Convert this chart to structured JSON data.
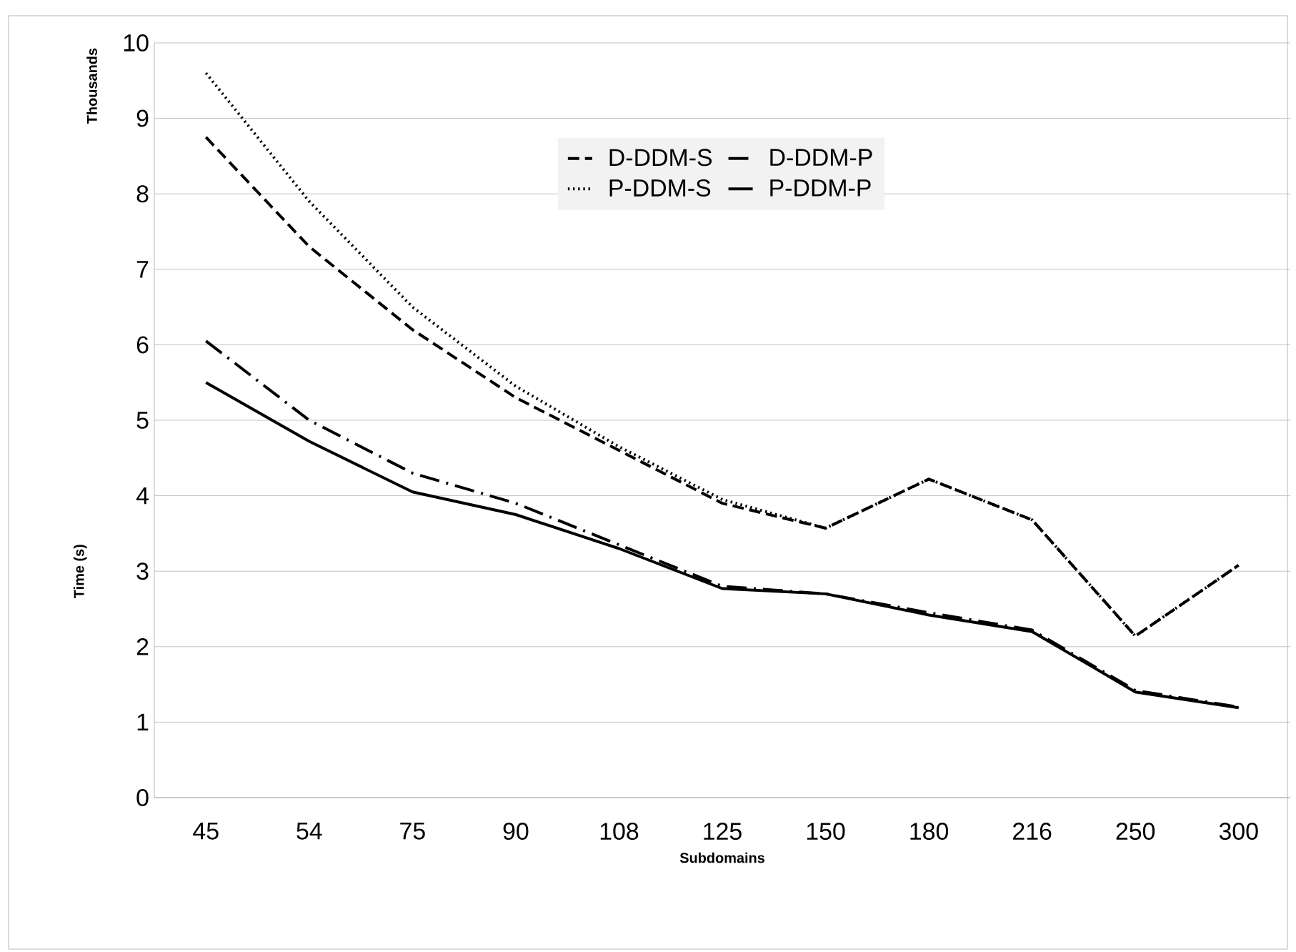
{
  "chart_data": {
    "type": "line",
    "xlabel": "Subdomains",
    "ylabel": "Time (s)",
    "annotations": [
      "Thousands"
    ],
    "categories": [
      "45",
      "54",
      "75",
      "90",
      "108",
      "125",
      "150",
      "180",
      "216",
      "250",
      "300"
    ],
    "ylim": [
      0,
      10
    ],
    "yticks": [
      0,
      1,
      2,
      3,
      4,
      5,
      6,
      7,
      8,
      9,
      10
    ],
    "grid": "y",
    "legend": "top",
    "series": [
      {
        "name": "D-DDM-S",
        "color": "#000000",
        "line_style": "dashed",
        "values": [
          8.75,
          7.3,
          6.2,
          5.3,
          4.6,
          3.9,
          3.57,
          4.22,
          3.68,
          2.14,
          3.08
        ]
      },
      {
        "name": "D-DDM-P",
        "color": "#000000",
        "line_style": "dashdot",
        "values": [
          6.05,
          5.0,
          4.3,
          3.9,
          3.35,
          2.8,
          2.7,
          2.45,
          2.22,
          1.42,
          1.2
        ]
      },
      {
        "name": "P-DDM-S",
        "color": "#000000",
        "line_style": "dotted",
        "values": [
          9.6,
          7.9,
          6.5,
          5.45,
          4.65,
          3.95,
          3.57,
          4.22,
          3.68,
          2.14,
          3.08
        ]
      },
      {
        "name": "P-DDM-P",
        "color": "#000000",
        "line_style": "solid",
        "values": [
          5.5,
          4.72,
          4.05,
          3.75,
          3.3,
          2.77,
          2.7,
          2.42,
          2.2,
          1.4,
          1.19
        ]
      }
    ]
  }
}
